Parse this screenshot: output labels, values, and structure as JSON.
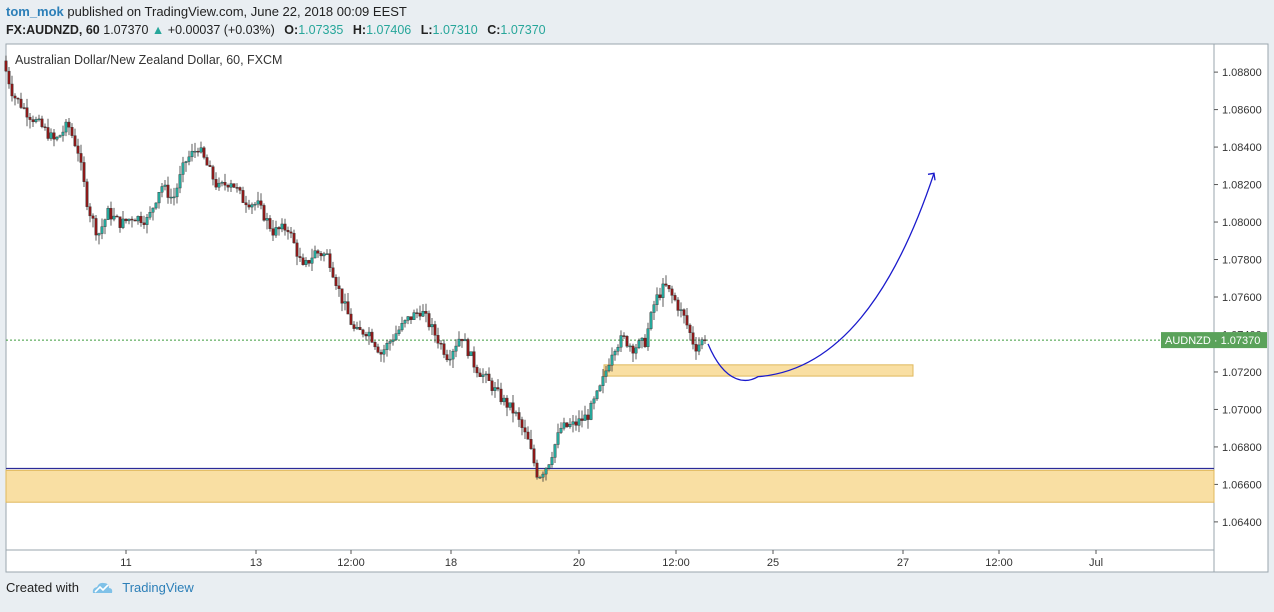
{
  "header": {
    "author": "tom_mok",
    "published_text": "published on TradingView.com, June 22, 2018 00:09 EEST",
    "symbol": "FX:AUDNZD, 60",
    "last": "1.07370",
    "change": "+0.00037 (+0.03%)",
    "open_label": "O:",
    "open": "1.07335",
    "high_label": "H:",
    "high": "1.07406",
    "low_label": "L:",
    "low": "1.07310",
    "close_label": "C:",
    "close": "1.07370"
  },
  "footer": {
    "created_with": "Created with",
    "brand": "TradingView"
  },
  "colors": {
    "up": "#26a69a",
    "down": "#8b1a1a",
    "zone_fill": "#f9dfa3",
    "zone_border": "#e0b85c",
    "projection": "#1a1acc",
    "support_line": "#2b2b99",
    "price_line": "#3c9a3c",
    "price_badge": "#5aa25a"
  },
  "chart_data": {
    "type": "candlestick",
    "title": "Australian Dollar/New Zealand Dollar, 60, FXCM",
    "ylim": [
      1.0625,
      1.0895
    ],
    "y_ticks": [
      "1.08800",
      "1.08600",
      "1.08400",
      "1.08200",
      "1.08000",
      "1.07800",
      "1.07600",
      "1.07400",
      "1.07200",
      "1.07000",
      "1.06800",
      "1.06600",
      "1.06400"
    ],
    "x_ticks": [
      {
        "label": "11",
        "t": 120
      },
      {
        "label": "13",
        "t": 250
      },
      {
        "label": "12:00",
        "t": 345
      },
      {
        "label": "18",
        "t": 445
      },
      {
        "label": "20",
        "t": 573
      },
      {
        "label": "12:00",
        "t": 670
      },
      {
        "label": "25",
        "t": 767
      },
      {
        "label": "27",
        "t": 897
      },
      {
        "label": "12:00",
        "t": 993
      },
      {
        "label": "Jul",
        "t": 1090
      }
    ],
    "x_range": [
      0,
      1208
    ],
    "price_path": [
      [
        0,
        1.0886
      ],
      [
        10,
        1.0868
      ],
      [
        25,
        1.0858
      ],
      [
        40,
        1.085
      ],
      [
        52,
        1.0843
      ],
      [
        65,
        1.0852
      ],
      [
        75,
        1.0838
      ],
      [
        85,
        1.0808
      ],
      [
        95,
        1.0793
      ],
      [
        105,
        1.0805
      ],
      [
        118,
        1.0799
      ],
      [
        130,
        1.0803
      ],
      [
        145,
        1.0801
      ],
      [
        158,
        1.082
      ],
      [
        170,
        1.0812
      ],
      [
        182,
        1.0832
      ],
      [
        195,
        1.084
      ],
      [
        205,
        1.0829
      ],
      [
        215,
        1.0818
      ],
      [
        228,
        1.0822
      ],
      [
        240,
        1.0812
      ],
      [
        255,
        1.0809
      ],
      [
        270,
        1.0795
      ],
      [
        285,
        1.0797
      ],
      [
        300,
        1.0775
      ],
      [
        312,
        1.0784
      ],
      [
        325,
        1.0782
      ],
      [
        338,
        1.076
      ],
      [
        352,
        1.0741
      ],
      [
        365,
        1.0742
      ],
      [
        378,
        1.073
      ],
      [
        392,
        1.074
      ],
      [
        405,
        1.0748
      ],
      [
        418,
        1.0753
      ],
      [
        430,
        1.0742
      ],
      [
        445,
        1.0728
      ],
      [
        458,
        1.074
      ],
      [
        472,
        1.0723
      ],
      [
        485,
        1.0715
      ],
      [
        498,
        1.0706
      ],
      [
        512,
        1.0698
      ],
      [
        525,
        1.0683
      ],
      [
        535,
        1.0664
      ],
      [
        545,
        1.0671
      ],
      [
        558,
        1.069
      ],
      [
        572,
        1.0692
      ],
      [
        585,
        1.0697
      ],
      [
        598,
        1.0712
      ],
      [
        610,
        1.0733
      ],
      [
        620,
        1.0738
      ],
      [
        630,
        1.0733
      ],
      [
        642,
        1.0736
      ],
      [
        652,
        1.0758
      ],
      [
        662,
        1.0766
      ],
      [
        672,
        1.0758
      ],
      [
        682,
        1.0748
      ],
      [
        692,
        1.0733
      ],
      [
        700,
        1.0737
      ]
    ],
    "price_seed": 7,
    "last_price": 1.0737,
    "last_label": "AUDNZD",
    "last_value": "1.07370",
    "support_line_price": 1.06685,
    "zones": [
      {
        "t0": 0,
        "t1": 1208,
        "p_top": 1.06675,
        "p_bottom": 1.06505
      },
      {
        "t0": 598,
        "t1": 907,
        "p_top": 1.07238,
        "p_bottom": 1.07178
      }
    ],
    "projection": {
      "start": [
        702,
        1.0735
      ],
      "bottom": [
        752,
        1.07175
      ],
      "end": [
        928,
        1.0826
      ]
    },
    "grid": false
  }
}
